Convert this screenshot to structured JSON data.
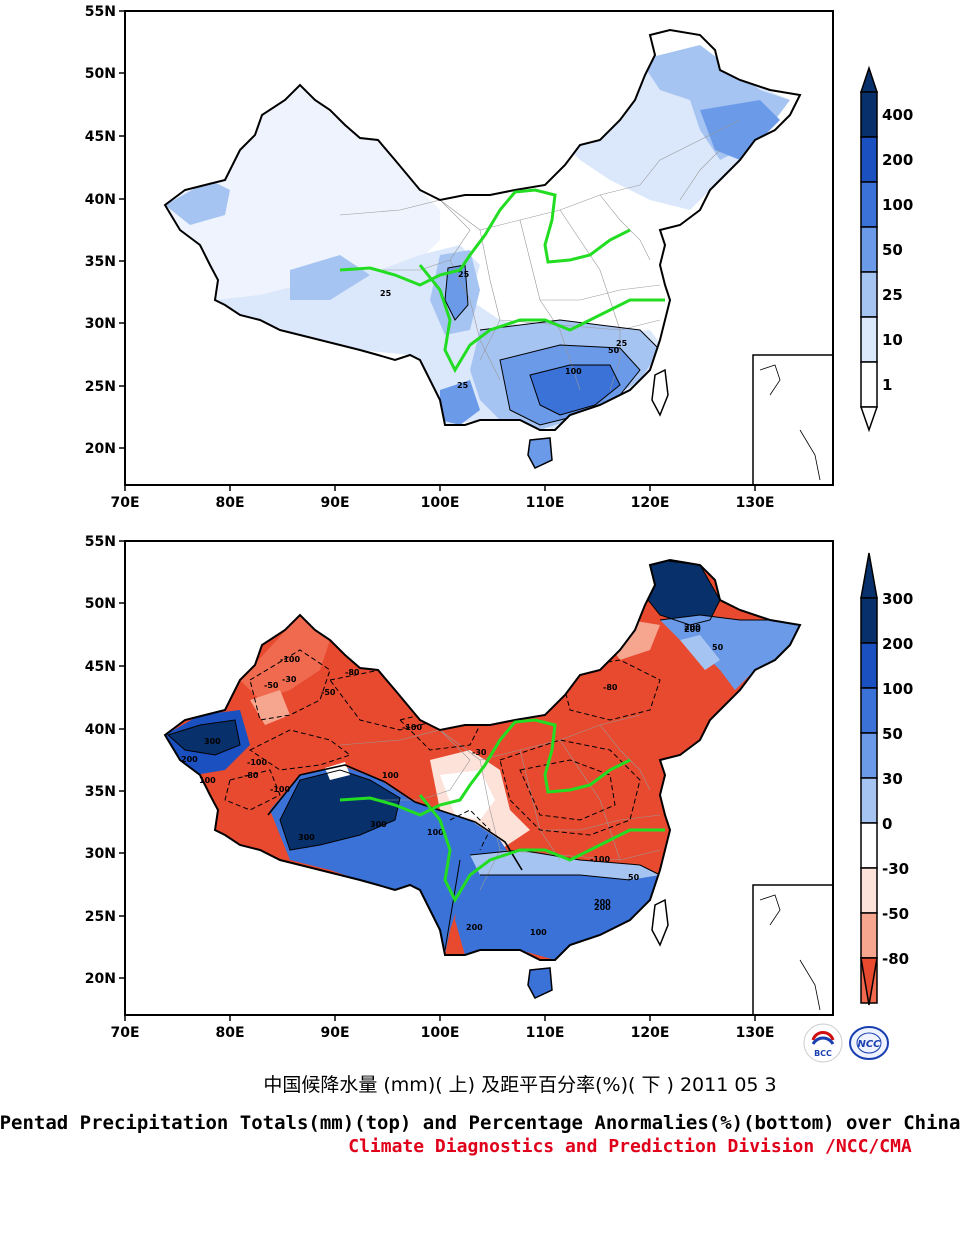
{
  "maps": [
    {
      "id": "totals",
      "lat_ticks": [
        "55N",
        "50N",
        "45N",
        "40N",
        "35N",
        "30N",
        "25N",
        "20N"
      ],
      "lon_ticks": [
        "70E",
        "80E",
        "90E",
        "100E",
        "110E",
        "120E",
        "130E"
      ],
      "colorbar": {
        "labels": [
          "400",
          "200",
          "100",
          "50",
          "25",
          "10",
          "1"
        ],
        "colors": [
          "#08306b",
          "#1a50c0",
          "#3a72d8",
          "#6a9ae8",
          "#a6c4f2",
          "#dbe7fb",
          "#ffffff"
        ]
      },
      "contour_labels": [
        "25",
        "25",
        "25",
        "25",
        "50",
        "100"
      ]
    },
    {
      "id": "anomalies",
      "lat_ticks": [
        "55N",
        "50N",
        "45N",
        "40N",
        "35N",
        "30N",
        "25N",
        "20N"
      ],
      "lon_ticks": [
        "70E",
        "80E",
        "90E",
        "100E",
        "110E",
        "120E",
        "130E"
      ],
      "colorbar": {
        "labels": [
          "300",
          "200",
          "100",
          "50",
          "30",
          "0",
          "-30",
          "-50",
          "-80"
        ],
        "colors": [
          "#08306b",
          "#1a50c0",
          "#3a72d8",
          "#6a9ae8",
          "#a6c4f2",
          "#ffffff",
          "#fde2d9",
          "#f6a58f",
          "#ef6a4e",
          "#e84a2f"
        ]
      },
      "contour_labels": [
        "300",
        "300",
        "200",
        "100",
        "100",
        "-100",
        "-80",
        "-50",
        "-30",
        "200",
        "200",
        "300",
        "-100",
        "-80",
        "50",
        "200",
        "100",
        "-100",
        "-80",
        "-100",
        "100",
        "-30",
        "-50",
        "-100",
        "200",
        "200",
        "50"
      ]
    }
  ],
  "caption": {
    "chinese": "中国候降水量 (mm)( 上) 及距平百分率(%)( 下 ) 2011 05 3",
    "english": "Pentad Precipitation Totals(mm)(top) and Percentage Anormalies(%)(bottom) over China",
    "division": "Climate Diagnostics and Prediction Division /NCC/CMA"
  },
  "logos": [
    {
      "name": "bcc-logo",
      "text": "BCC"
    },
    {
      "name": "ncc-logo",
      "text": "NCC"
    }
  ],
  "colors": {
    "river": "#22dd22",
    "division_text": "#e0001a"
  }
}
